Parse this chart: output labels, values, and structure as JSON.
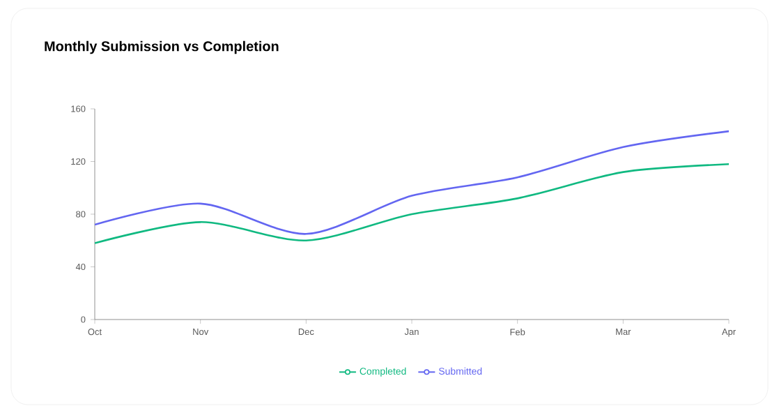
{
  "chart_data": {
    "type": "line",
    "title": "Monthly Submission vs Completion",
    "categories": [
      "Oct",
      "Nov",
      "Dec",
      "Jan",
      "Feb",
      "Mar",
      "Apr"
    ],
    "series": [
      {
        "name": "Completed",
        "color": "#10b981",
        "values": [
          58,
          74,
          60,
          80,
          92,
          112,
          118
        ]
      },
      {
        "name": "Submitted",
        "color": "#6366f1",
        "values": [
          72,
          88,
          65,
          94,
          108,
          131,
          143
        ]
      }
    ],
    "ylim": [
      0,
      160
    ],
    "yticks": [
      0,
      40,
      80,
      120,
      160
    ],
    "legend": "bottom"
  }
}
